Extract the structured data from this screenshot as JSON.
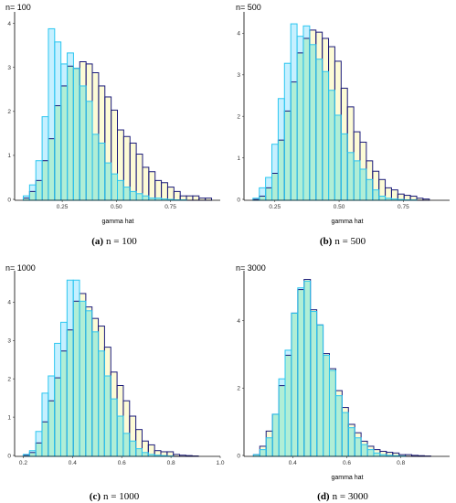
{
  "panels": [
    {
      "title": "n= 100",
      "caption_label": "(a)",
      "caption_text": "n = 100"
    },
    {
      "title": "n= 500",
      "caption_label": "(b)",
      "caption_text": "n = 500"
    },
    {
      "title": "n= 1000",
      "caption_label": "(c)",
      "caption_text": "n = 1000"
    },
    {
      "title": "n= 3000",
      "caption_label": "(d)",
      "caption_text": "n = 3000"
    }
  ],
  "colors": {
    "outer_fill": "#c6f0ff",
    "outer_stroke": "#2bc6f0",
    "inner_fill": "#fdfbd6",
    "inner_stroke": "#1a1a7a",
    "overlap_fill": "#b0eed6",
    "axis": "#000000"
  },
  "chart_data": [
    {
      "type": "bar",
      "subtype": "overlaid-histogram",
      "title": "n= 100",
      "xlabel": "gamma hat",
      "ylabel": "",
      "xlim": [
        0.03,
        0.98
      ],
      "ylim": [
        0,
        4.2
      ],
      "xticks": [
        0.25,
        0.5,
        0.75
      ],
      "xtick_labels": [
        "0.25",
        "0.50",
        "0.75"
      ],
      "yticks": [
        0,
        1,
        2,
        3,
        4
      ],
      "bin_start": 0.07,
      "bin_width": 0.029,
      "series": [
        {
          "values": [
            0.1,
            0.35,
            0.9,
            1.9,
            3.9,
            3.6,
            3.1,
            3.35,
            3.0,
            2.6,
            2.25,
            1.5,
            1.3,
            0.85,
            0.6,
            0.45,
            0.3,
            0.2,
            0.15,
            0.1,
            0.05,
            0.05,
            0.03,
            0.02,
            0.01,
            0.01,
            0.0,
            0.0,
            0.0,
            0.0
          ]
        },
        {
          "values": [
            0.05,
            0.2,
            0.45,
            0.9,
            1.4,
            2.15,
            2.6,
            3.05,
            3.0,
            3.15,
            3.1,
            2.9,
            2.6,
            2.35,
            2.05,
            1.6,
            1.45,
            1.3,
            1.05,
            0.75,
            0.65,
            0.45,
            0.4,
            0.3,
            0.2,
            0.1,
            0.1,
            0.1,
            0.05,
            0.05
          ]
        }
      ]
    },
    {
      "type": "bar",
      "subtype": "overlaid-histogram",
      "title": "n= 500",
      "xlabel": "gamma hat",
      "ylabel": "",
      "xlim": [
        0.13,
        0.93
      ],
      "ylim": [
        0,
        4.45
      ],
      "xticks": [
        0.25,
        0.5,
        0.75
      ],
      "xtick_labels": [
        "0.25",
        "0.50",
        "0.75"
      ],
      "yticks": [
        0,
        1,
        2,
        3,
        4
      ],
      "bin_start": 0.165,
      "bin_width": 0.0245,
      "series": [
        {
          "values": [
            0.05,
            0.3,
            0.55,
            1.35,
            2.45,
            3.3,
            4.25,
            3.95,
            4.2,
            3.75,
            3.4,
            3.1,
            2.65,
            2.05,
            1.6,
            1.15,
            0.95,
            0.75,
            0.5,
            0.25,
            0.1,
            0.05,
            0.03,
            0.02,
            0.01,
            0.01,
            0.0,
            0.0,
            0.0,
            0.0
          ]
        },
        {
          "values": [
            0.02,
            0.1,
            0.3,
            0.65,
            1.45,
            2.15,
            2.85,
            3.55,
            3.9,
            4.1,
            4.05,
            3.9,
            3.7,
            3.35,
            2.7,
            2.25,
            1.65,
            1.4,
            0.95,
            0.7,
            0.5,
            0.3,
            0.25,
            0.15,
            0.12,
            0.1,
            0.05,
            0.03,
            0.0,
            0.0
          ]
        }
      ]
    },
    {
      "type": "bar",
      "subtype": "overlaid-histogram",
      "title": "n= 1000",
      "xlabel": "",
      "ylabel": "",
      "xlim": [
        0.165,
        1.0
      ],
      "ylim": [
        0,
        4.75
      ],
      "xticks": [
        0.2,
        0.4,
        0.6,
        0.8,
        1.0
      ],
      "xtick_labels": [
        "0.2",
        "0.4",
        "0.6",
        "0.8",
        "1.0"
      ],
      "yticks": [
        0,
        1,
        2,
        3,
        4
      ],
      "bin_start": 0.2,
      "bin_width": 0.0254,
      "series": [
        {
          "values": [
            0.05,
            0.15,
            0.65,
            1.65,
            2.1,
            2.95,
            3.5,
            4.6,
            4.6,
            4.05,
            3.8,
            3.25,
            2.75,
            2.1,
            1.5,
            1.05,
            0.6,
            0.4,
            0.2,
            0.1,
            0.05,
            0.03,
            0.02,
            0.01,
            0.0,
            0.0,
            0.0,
            0.0,
            0.0,
            0.0
          ]
        },
        {
          "values": [
            0.03,
            0.1,
            0.35,
            0.9,
            1.45,
            2.05,
            2.75,
            3.3,
            4.05,
            4.25,
            3.9,
            3.6,
            3.4,
            2.85,
            2.2,
            1.85,
            1.45,
            1.05,
            0.7,
            0.4,
            0.3,
            0.15,
            0.12,
            0.12,
            0.05,
            0.03,
            0.02,
            0.01,
            0.0,
            0.0
          ]
        }
      ]
    },
    {
      "type": "bar",
      "subtype": "overlaid-histogram",
      "title": "n= 3000",
      "xlabel": "gamma hat",
      "ylabel": "",
      "xlim": [
        0.22,
        0.98
      ],
      "ylim": [
        0,
        5.4
      ],
      "xticks": [
        0.4,
        0.6,
        0.8
      ],
      "xtick_labels": [
        "0.4",
        "0.6",
        "0.8"
      ],
      "yticks": [
        0,
        2,
        4
      ],
      "bin_start": 0.255,
      "bin_width": 0.0234,
      "series": [
        {
          "values": [
            0.05,
            0.2,
            0.55,
            1.25,
            2.3,
            3.15,
            4.25,
            5.0,
            5.2,
            4.3,
            3.9,
            3.0,
            2.55,
            1.8,
            1.3,
            0.85,
            0.55,
            0.35,
            0.2,
            0.1,
            0.05,
            0.03,
            0.02,
            0.01,
            0.0,
            0.0,
            0.0,
            0.0,
            0.0,
            0.0
          ]
        },
        {
          "values": [
            0.05,
            0.3,
            0.75,
            1.25,
            2.1,
            3.0,
            4.25,
            4.95,
            5.25,
            4.35,
            3.9,
            3.05,
            2.6,
            1.95,
            1.45,
            0.95,
            0.7,
            0.45,
            0.3,
            0.2,
            0.15,
            0.12,
            0.1,
            0.05,
            0.05,
            0.03,
            0.02,
            0.01,
            0.0,
            0.0
          ]
        }
      ]
    }
  ]
}
